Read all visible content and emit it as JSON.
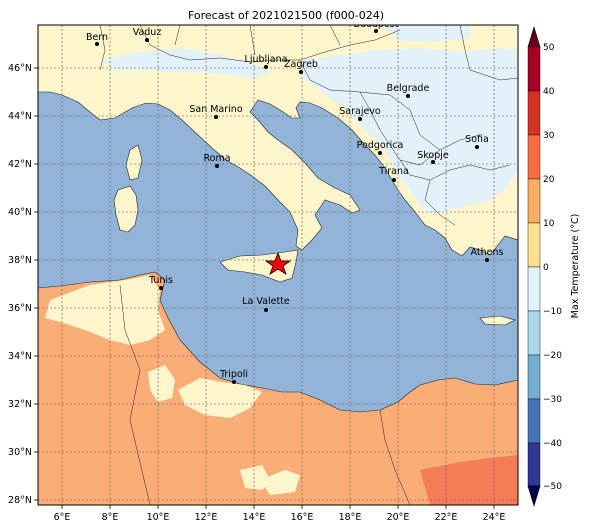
{
  "title": "Forecast of 2021021500 (f000-024)",
  "colorbar": {
    "label": "Max Temperature (°C)",
    "ticks": [
      "50",
      "40",
      "30",
      "20",
      "10",
      "0",
      "−10",
      "−20",
      "−30",
      "−40",
      "−50"
    ],
    "colors": [
      "#a50026",
      "#d73027",
      "#f46d43",
      "#fdae61",
      "#fee090",
      "#ffffbf",
      "#e0f3f8",
      "#abd9e9",
      "#74add1",
      "#4575b4",
      "#313695"
    ]
  },
  "axes": {
    "lon_labels": [
      "6°E",
      "8°E",
      "10°E",
      "12°E",
      "14°E",
      "16°E",
      "18°E",
      "20°E",
      "22°E",
      "24°E"
    ],
    "lat_labels": [
      "46°N",
      "44°N",
      "42°N",
      "40°N",
      "38°N",
      "36°N",
      "34°N",
      "32°N",
      "30°N",
      "28°N"
    ]
  },
  "colors": {
    "sea": "#92b4d8",
    "land_cool": "#fdf5cc",
    "land_cold": "#e2f2f8",
    "land_warm": "#fbad78",
    "land_hot": "#f47c56"
  },
  "cities": [
    {
      "name": "Bern"
    },
    {
      "name": "Vaduz"
    },
    {
      "name": "Budapest"
    },
    {
      "name": "Ljubljana"
    },
    {
      "name": "Zagreb"
    },
    {
      "name": "Belgrade"
    },
    {
      "name": "San Marino"
    },
    {
      "name": "Sarajevo"
    },
    {
      "name": "Sofia"
    },
    {
      "name": "Podgorica"
    },
    {
      "name": "Skopje"
    },
    {
      "name": "Roma"
    },
    {
      "name": "Tirana"
    },
    {
      "name": "Athens"
    },
    {
      "name": "Tunis"
    },
    {
      "name": "La Valette"
    },
    {
      "name": "Tripoli"
    }
  ],
  "marker": {
    "name": "star-marker",
    "color": "#ff0000"
  }
}
